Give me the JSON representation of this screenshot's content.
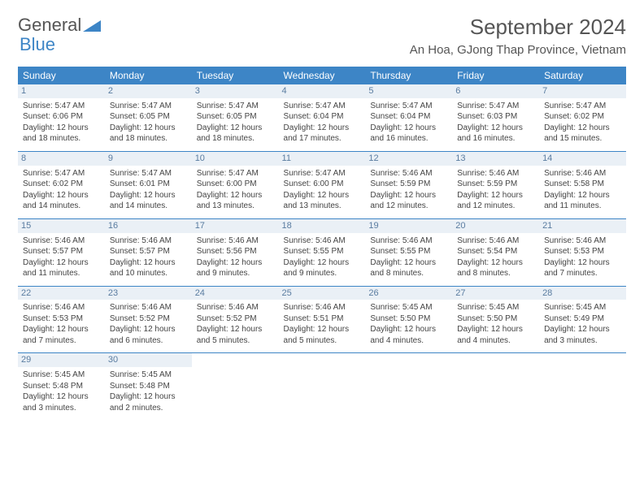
{
  "logo": {
    "text1": "General",
    "text2": "Blue"
  },
  "title": "September 2024",
  "location": "An Hoa, GJong Thap Province, Vietnam",
  "weekdays": [
    "Sunday",
    "Monday",
    "Tuesday",
    "Wednesday",
    "Thursday",
    "Friday",
    "Saturday"
  ],
  "colors": {
    "header_bg": "#3d85c6",
    "header_text": "#ffffff",
    "daynum_bg": "#eaf0f6",
    "daynum_text": "#5a7ca0",
    "border": "#3d85c6",
    "body_text": "#444444",
    "page_bg": "#ffffff"
  },
  "fonts": {
    "title_size": 26,
    "location_size": 15,
    "dayhead_size": 12,
    "cell_size": 10
  },
  "weeks": [
    [
      {
        "num": "1",
        "sunrise": "5:47 AM",
        "sunset": "6:06 PM",
        "daylight": "12 hours and 18 minutes."
      },
      {
        "num": "2",
        "sunrise": "5:47 AM",
        "sunset": "6:05 PM",
        "daylight": "12 hours and 18 minutes."
      },
      {
        "num": "3",
        "sunrise": "5:47 AM",
        "sunset": "6:05 PM",
        "daylight": "12 hours and 18 minutes."
      },
      {
        "num": "4",
        "sunrise": "5:47 AM",
        "sunset": "6:04 PM",
        "daylight": "12 hours and 17 minutes."
      },
      {
        "num": "5",
        "sunrise": "5:47 AM",
        "sunset": "6:04 PM",
        "daylight": "12 hours and 16 minutes."
      },
      {
        "num": "6",
        "sunrise": "5:47 AM",
        "sunset": "6:03 PM",
        "daylight": "12 hours and 16 minutes."
      },
      {
        "num": "7",
        "sunrise": "5:47 AM",
        "sunset": "6:02 PM",
        "daylight": "12 hours and 15 minutes."
      }
    ],
    [
      {
        "num": "8",
        "sunrise": "5:47 AM",
        "sunset": "6:02 PM",
        "daylight": "12 hours and 14 minutes."
      },
      {
        "num": "9",
        "sunrise": "5:47 AM",
        "sunset": "6:01 PM",
        "daylight": "12 hours and 14 minutes."
      },
      {
        "num": "10",
        "sunrise": "5:47 AM",
        "sunset": "6:00 PM",
        "daylight": "12 hours and 13 minutes."
      },
      {
        "num": "11",
        "sunrise": "5:47 AM",
        "sunset": "6:00 PM",
        "daylight": "12 hours and 13 minutes."
      },
      {
        "num": "12",
        "sunrise": "5:46 AM",
        "sunset": "5:59 PM",
        "daylight": "12 hours and 12 minutes."
      },
      {
        "num": "13",
        "sunrise": "5:46 AM",
        "sunset": "5:59 PM",
        "daylight": "12 hours and 12 minutes."
      },
      {
        "num": "14",
        "sunrise": "5:46 AM",
        "sunset": "5:58 PM",
        "daylight": "12 hours and 11 minutes."
      }
    ],
    [
      {
        "num": "15",
        "sunrise": "5:46 AM",
        "sunset": "5:57 PM",
        "daylight": "12 hours and 11 minutes."
      },
      {
        "num": "16",
        "sunrise": "5:46 AM",
        "sunset": "5:57 PM",
        "daylight": "12 hours and 10 minutes."
      },
      {
        "num": "17",
        "sunrise": "5:46 AM",
        "sunset": "5:56 PM",
        "daylight": "12 hours and 9 minutes."
      },
      {
        "num": "18",
        "sunrise": "5:46 AM",
        "sunset": "5:55 PM",
        "daylight": "12 hours and 9 minutes."
      },
      {
        "num": "19",
        "sunrise": "5:46 AM",
        "sunset": "5:55 PM",
        "daylight": "12 hours and 8 minutes."
      },
      {
        "num": "20",
        "sunrise": "5:46 AM",
        "sunset": "5:54 PM",
        "daylight": "12 hours and 8 minutes."
      },
      {
        "num": "21",
        "sunrise": "5:46 AM",
        "sunset": "5:53 PM",
        "daylight": "12 hours and 7 minutes."
      }
    ],
    [
      {
        "num": "22",
        "sunrise": "5:46 AM",
        "sunset": "5:53 PM",
        "daylight": "12 hours and 7 minutes."
      },
      {
        "num": "23",
        "sunrise": "5:46 AM",
        "sunset": "5:52 PM",
        "daylight": "12 hours and 6 minutes."
      },
      {
        "num": "24",
        "sunrise": "5:46 AM",
        "sunset": "5:52 PM",
        "daylight": "12 hours and 5 minutes."
      },
      {
        "num": "25",
        "sunrise": "5:46 AM",
        "sunset": "5:51 PM",
        "daylight": "12 hours and 5 minutes."
      },
      {
        "num": "26",
        "sunrise": "5:45 AM",
        "sunset": "5:50 PM",
        "daylight": "12 hours and 4 minutes."
      },
      {
        "num": "27",
        "sunrise": "5:45 AM",
        "sunset": "5:50 PM",
        "daylight": "12 hours and 4 minutes."
      },
      {
        "num": "28",
        "sunrise": "5:45 AM",
        "sunset": "5:49 PM",
        "daylight": "12 hours and 3 minutes."
      }
    ],
    [
      {
        "num": "29",
        "sunrise": "5:45 AM",
        "sunset": "5:48 PM",
        "daylight": "12 hours and 3 minutes."
      },
      {
        "num": "30",
        "sunrise": "5:45 AM",
        "sunset": "5:48 PM",
        "daylight": "12 hours and 2 minutes."
      },
      null,
      null,
      null,
      null,
      null
    ]
  ],
  "labels": {
    "sunrise": "Sunrise: ",
    "sunset": "Sunset: ",
    "daylight": "Daylight: "
  }
}
